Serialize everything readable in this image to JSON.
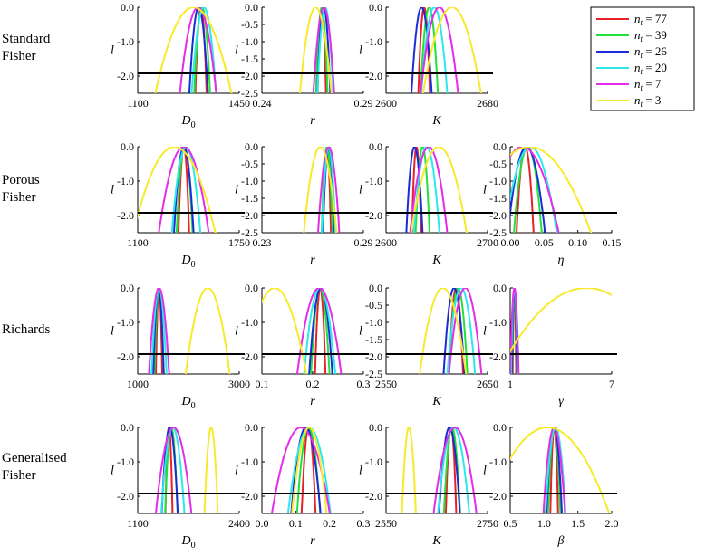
{
  "legend": {
    "entries": [
      {
        "label": "n_t = 77",
        "nt": "77",
        "color": "#e8202a"
      },
      {
        "label": "n_t = 39",
        "nt": "39",
        "color": "#22e03a"
      },
      {
        "label": "n_t = 26",
        "nt": "26",
        "color": "#1a2cd6"
      },
      {
        "label": "n_t = 20",
        "nt": "20",
        "color": "#2ce8ea"
      },
      {
        "label": "n_t = 7",
        "nt": "7",
        "color": "#e52ce8"
      },
      {
        "label": "n_t = 3",
        "nt": "3",
        "color": "#f6ea2a"
      }
    ]
  },
  "threshold": -1.92,
  "y_label": "l",
  "rows": [
    {
      "label_lines": [
        "Standard",
        "Fisher"
      ]
    },
    {
      "label_lines": [
        "Porous",
        "Fisher"
      ]
    },
    {
      "label_lines": [
        "Richards"
      ]
    },
    {
      "label_lines": [
        "Generalised",
        "Fisher"
      ]
    }
  ],
  "chart_data": [
    {
      "type": "line",
      "row": 0,
      "col": 0,
      "xlabel": "D_0",
      "xticks": [
        "1100",
        "1450"
      ],
      "xlim": [
        1100,
        1450
      ],
      "yticks": [
        "0.0",
        "-1.0",
        "-2.0"
      ],
      "ylim": [
        -2.5,
        0
      ],
      "series": [
        {
          "nt": "77",
          "peak": 1318,
          "halfwidth": 17
        },
        {
          "nt": "39",
          "peak": 1322,
          "halfwidth": 24
        },
        {
          "nt": "26",
          "peak": 1310,
          "halfwidth": 28
        },
        {
          "nt": "20",
          "peak": 1328,
          "halfwidth": 37
        },
        {
          "nt": "7",
          "peak": 1308,
          "halfwidth": 55
        },
        {
          "nt": "3",
          "peak": 1292,
          "halfwidth": 115
        }
      ]
    },
    {
      "type": "line",
      "row": 0,
      "col": 1,
      "xlabel": "r",
      "xticks": [
        "0.24",
        "0.29"
      ],
      "xlim": [
        0.24,
        0.29
      ],
      "yticks": [
        "0.0",
        "-0.5",
        "-1.0",
        "-1.5",
        "-2.0",
        "-2.5"
      ],
      "ylim": [
        -2.5,
        0
      ],
      "series": [
        {
          "nt": "77",
          "peak": 0.2695,
          "halfwidth": 0.0018
        },
        {
          "nt": "39",
          "peak": 0.2695,
          "halfwidth": 0.0025
        },
        {
          "nt": "26",
          "peak": 0.2705,
          "halfwidth": 0.0028
        },
        {
          "nt": "20",
          "peak": 0.2712,
          "halfwidth": 0.0034
        },
        {
          "nt": "7",
          "peak": 0.2705,
          "halfwidth": 0.0045
        },
        {
          "nt": "3",
          "peak": 0.2665,
          "halfwidth": 0.0068
        }
      ]
    },
    {
      "type": "line",
      "row": 0,
      "col": 2,
      "xlabel": "K",
      "xticks": [
        "2600",
        "2680"
      ],
      "xlim": [
        2600,
        2680
      ],
      "yticks": [
        "0.0",
        "-1.0",
        "-2.0"
      ],
      "ylim": [
        -2.5,
        0
      ],
      "series": [
        {
          "nt": "77",
          "peak": 2630,
          "halfwidth": 4
        },
        {
          "nt": "39",
          "peak": 2634,
          "halfwidth": 6
        },
        {
          "nt": "26",
          "peak": 2628,
          "halfwidth": 7
        },
        {
          "nt": "20",
          "peak": 2638,
          "halfwidth": 9
        },
        {
          "nt": "7",
          "peak": 2642,
          "halfwidth": 13
        },
        {
          "nt": "3",
          "peak": 2652,
          "halfwidth": 20
        }
      ]
    },
    {
      "type": "line",
      "row": 1,
      "col": 0,
      "xlabel": "D_0",
      "xticks": [
        "1100",
        "1750"
      ],
      "xlim": [
        1100,
        1750
      ],
      "yticks": [
        "0.0",
        "-1.0",
        "-2.0"
      ],
      "ylim": [
        -2.5,
        0
      ],
      "series": [
        {
          "nt": "77",
          "peak": 1395,
          "halfwidth": 30
        },
        {
          "nt": "39",
          "peak": 1400,
          "halfwidth": 45
        },
        {
          "nt": "26",
          "peak": 1395,
          "halfwidth": 55
        },
        {
          "nt": "20",
          "peak": 1410,
          "halfwidth": 80
        },
        {
          "nt": "7",
          "peak": 1395,
          "halfwidth": 140
        },
        {
          "nt": "3",
          "peak": 1335,
          "halfwidth": 230
        }
      ]
    },
    {
      "type": "line",
      "row": 1,
      "col": 1,
      "xlabel": "r",
      "xticks": [
        "0.23",
        "0.29"
      ],
      "xlim": [
        0.23,
        0.29
      ],
      "yticks": [
        "0.0",
        "-0.5",
        "-1.0",
        "-1.5",
        "-2.0",
        "-2.5"
      ],
      "ylim": [
        -2.5,
        0
      ],
      "series": [
        {
          "nt": "77",
          "peak": 0.2685,
          "halfwidth": 0.002
        },
        {
          "nt": "39",
          "peak": 0.2685,
          "halfwidth": 0.0028
        },
        {
          "nt": "26",
          "peak": 0.2695,
          "halfwidth": 0.003
        },
        {
          "nt": "20",
          "peak": 0.2695,
          "halfwidth": 0.0035
        },
        {
          "nt": "7",
          "peak": 0.2695,
          "halfwidth": 0.0055
        },
        {
          "nt": "3",
          "peak": 0.2645,
          "halfwidth": 0.0085
        }
      ]
    },
    {
      "type": "line",
      "row": 1,
      "col": 2,
      "xlabel": "K",
      "xticks": [
        "2600",
        "2700"
      ],
      "xlim": [
        2600,
        2700
      ],
      "yticks": [
        "0.0",
        "-1.0",
        "-2.0"
      ],
      "ylim": [
        -2.5,
        0
      ],
      "series": [
        {
          "nt": "77",
          "peak": 2630,
          "halfwidth": 4
        },
        {
          "nt": "39",
          "peak": 2636,
          "halfwidth": 6
        },
        {
          "nt": "26",
          "peak": 2628,
          "halfwidth": 7
        },
        {
          "nt": "20",
          "peak": 2640,
          "halfwidth": 11
        },
        {
          "nt": "7",
          "peak": 2642,
          "halfwidth": 16
        },
        {
          "nt": "3",
          "peak": 2652,
          "halfwidth": 24
        }
      ]
    },
    {
      "type": "line",
      "row": 1,
      "col": 3,
      "xlabel": "η",
      "xticks": [
        "0.00",
        "0.05",
        "0.10",
        "0.15"
      ],
      "xlim": [
        0,
        0.15
      ],
      "yticks": [
        "0.0",
        "-0.5",
        "-1.0",
        "-1.5",
        "-2.0",
        "-2.5"
      ],
      "ylim": [
        -2.5,
        0
      ],
      "series": [
        {
          "nt": "77",
          "peak": 0.022,
          "halfwidth": 0.011
        },
        {
          "nt": "39",
          "peak": 0.026,
          "halfwidth": 0.018
        },
        {
          "nt": "26",
          "peak": 0.024,
          "halfwidth": 0.024
        },
        {
          "nt": "20",
          "peak": 0.03,
          "halfwidth": 0.034
        },
        {
          "nt": "7",
          "peak": 0.018,
          "halfwidth": 0.047
        },
        {
          "nt": "3",
          "peak": 0.028,
          "halfwidth": 0.08
        }
      ]
    },
    {
      "type": "line",
      "row": 2,
      "col": 0,
      "xlabel": "D_0",
      "xticks": [
        "1000",
        "3000"
      ],
      "xlim": [
        1000,
        3000
      ],
      "yticks": [
        "0.0",
        "-1.0",
        "-2.0"
      ],
      "ylim": [
        -2.5,
        0
      ],
      "series": [
        {
          "nt": "77",
          "peak": 1420,
          "halfwidth": 55
        },
        {
          "nt": "39",
          "peak": 1420,
          "halfwidth": 80
        },
        {
          "nt": "26",
          "peak": 1410,
          "halfwidth": 90
        },
        {
          "nt": "20",
          "peak": 1420,
          "halfwidth": 130
        },
        {
          "nt": "7",
          "peak": 1420,
          "halfwidth": 175
        },
        {
          "nt": "3",
          "peak": 2380,
          "halfwidth": 380
        }
      ]
    },
    {
      "type": "line",
      "row": 2,
      "col": 1,
      "xlabel": "r",
      "xticks": [
        "0.1",
        "0.2",
        "0.3"
      ],
      "xlim": [
        0.1,
        0.3
      ],
      "yticks": [
        "0.0",
        "-1.0",
        "-2.0"
      ],
      "ylim": [
        -2.5,
        0
      ],
      "series": [
        {
          "nt": "77",
          "peak": 0.215,
          "halfwidth": 0.009
        },
        {
          "nt": "39",
          "peak": 0.215,
          "halfwidth": 0.016
        },
        {
          "nt": "26",
          "peak": 0.216,
          "halfwidth": 0.02
        },
        {
          "nt": "20",
          "peak": 0.214,
          "halfwidth": 0.027
        },
        {
          "nt": "7",
          "peak": 0.213,
          "halfwidth": 0.038
        },
        {
          "nt": "3",
          "peak": 0.125,
          "halfwidth": 0.055
        }
      ]
    },
    {
      "type": "line",
      "row": 2,
      "col": 2,
      "xlabel": "K",
      "xticks": [
        "2550",
        "2650"
      ],
      "xlim": [
        2550,
        2650
      ],
      "yticks": [
        "0.0",
        "-0.5",
        "-1.0",
        "-1.5",
        "-2.0",
        "-2.5"
      ],
      "ylim": [
        -2.5,
        0
      ],
      "series": [
        {
          "nt": "77",
          "peak": 2619,
          "halfwidth": 6
        },
        {
          "nt": "39",
          "peak": 2621,
          "halfwidth": 8
        },
        {
          "nt": "26",
          "peak": 2617,
          "halfwidth": 9
        },
        {
          "nt": "20",
          "peak": 2624,
          "halfwidth": 12
        },
        {
          "nt": "7",
          "peak": 2628,
          "halfwidth": 14
        },
        {
          "nt": "3",
          "peak": 2606,
          "halfwidth": 20
        }
      ]
    },
    {
      "type": "line",
      "row": 2,
      "col": 3,
      "xlabel": "γ",
      "xticks": [
        "1",
        "7"
      ],
      "xlim": [
        1,
        7
      ],
      "yticks": [
        "0.0",
        "-1.0",
        "-2.0"
      ],
      "ylim": [
        -2.5,
        0
      ],
      "series": [
        {
          "nt": "77",
          "peak": 1.25,
          "halfwidth": 0.09
        },
        {
          "nt": "39",
          "peak": 1.25,
          "halfwidth": 0.12
        },
        {
          "nt": "26",
          "peak": 1.25,
          "halfwidth": 0.14
        },
        {
          "nt": "20",
          "peak": 1.25,
          "halfwidth": 0.18
        },
        {
          "nt": "7",
          "peak": 1.25,
          "halfwidth": 0.22
        },
        {
          "nt": "3",
          "peak": 5.5,
          "halfwidth": 4.6
        }
      ]
    },
    {
      "type": "line",
      "row": 3,
      "col": 0,
      "xlabel": "D_0",
      "xticks": [
        "1100",
        "2400"
      ],
      "xlim": [
        1100,
        2400
      ],
      "yticks": [
        "0.0",
        "-1.0",
        "-2.0"
      ],
      "ylim": [
        -2.5,
        0
      ],
      "series": [
        {
          "nt": "77",
          "peak": 1500,
          "halfwidth": 40
        },
        {
          "nt": "39",
          "peak": 1530,
          "halfwidth": 70
        },
        {
          "nt": "26",
          "peak": 1510,
          "halfwidth": 90
        },
        {
          "nt": "20",
          "peak": 1550,
          "halfwidth": 130
        },
        {
          "nt": "7",
          "peak": 1560,
          "halfwidth": 200
        },
        {
          "nt": "3",
          "peak": 2040,
          "halfwidth": 75
        }
      ]
    },
    {
      "type": "line",
      "row": 3,
      "col": 1,
      "xlabel": "r",
      "xticks": [
        "0.0",
        "0.1",
        "0.2",
        "0.3"
      ],
      "xlim": [
        0,
        0.3
      ],
      "yticks": [
        "0.0",
        "-1.0",
        "-2.0"
      ],
      "ylim": [
        -2.5,
        0
      ],
      "series": [
        {
          "nt": "77",
          "peak": 0.138,
          "halfwidth": 0.018
        },
        {
          "nt": "39",
          "peak": 0.138,
          "halfwidth": 0.03
        },
        {
          "nt": "26",
          "peak": 0.13,
          "halfwidth": 0.038
        },
        {
          "nt": "20",
          "peak": 0.14,
          "halfwidth": 0.055
        },
        {
          "nt": "7",
          "peak": 0.115,
          "halfwidth": 0.075
        },
        {
          "nt": "3",
          "peak": 0.14,
          "halfwidth": 0.045
        }
      ]
    },
    {
      "type": "line",
      "row": 3,
      "col": 2,
      "xlabel": "K",
      "xticks": [
        "2550",
        "2750"
      ],
      "xlim": [
        2550,
        2750
      ],
      "yticks": [
        "0.0",
        "-1.0",
        "-2.0"
      ],
      "ylim": [
        -2.5,
        0
      ],
      "series": [
        {
          "nt": "77",
          "peak": 2678,
          "halfwidth": 9
        },
        {
          "nt": "39",
          "peak": 2680,
          "halfwidth": 14
        },
        {
          "nt": "26",
          "peak": 2675,
          "halfwidth": 18
        },
        {
          "nt": "20",
          "peak": 2683,
          "halfwidth": 27
        },
        {
          "nt": "7",
          "peak": 2686,
          "halfwidth": 37
        },
        {
          "nt": "3",
          "peak": 2595,
          "halfwidth": 12
        }
      ]
    },
    {
      "type": "line",
      "row": 3,
      "col": 3,
      "xlabel": "β",
      "xticks": [
        "0.5",
        "1.0",
        "1.5",
        "2.0"
      ],
      "xlim": [
        0.5,
        2.0
      ],
      "yticks": [
        "0.0",
        "-1.0",
        "-2.0"
      ],
      "ylim": [
        -2.5,
        0
      ],
      "series": [
        {
          "nt": "77",
          "peak": 1.15,
          "halfwidth": 0.05
        },
        {
          "nt": "39",
          "peak": 1.15,
          "halfwidth": 0.08
        },
        {
          "nt": "26",
          "peak": 1.15,
          "halfwidth": 0.1
        },
        {
          "nt": "20",
          "peak": 1.17,
          "halfwidth": 0.13
        },
        {
          "nt": "7",
          "peak": 1.15,
          "halfwidth": 0.14
        },
        {
          "nt": "3",
          "peak": 1.05,
          "halfwidth": 0.8
        }
      ]
    }
  ]
}
